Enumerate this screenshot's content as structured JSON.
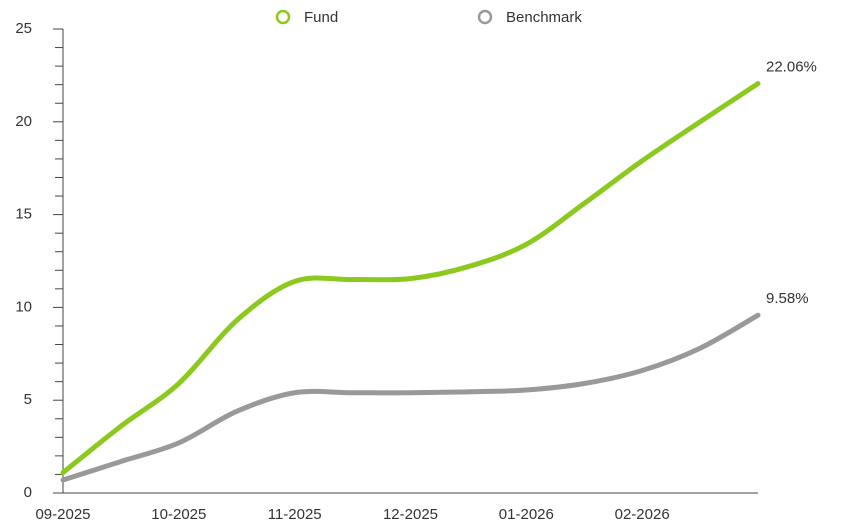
{
  "chart_data": {
    "type": "line",
    "categories": [
      "09-2025",
      null,
      "10-2025",
      null,
      "11-2025",
      null,
      "12-2025",
      null,
      "01-2026",
      null,
      "02-2026",
      null,
      null
    ],
    "series": [
      {
        "name": "Fund",
        "color": "#8cc91e",
        "values": [
          1.1,
          3.6,
          5.9,
          9.3,
          11.4,
          11.5,
          11.55,
          12.2,
          13.4,
          15.6,
          17.9,
          20.0,
          22.06
        ],
        "value_labels": [
          null,
          null,
          null,
          null,
          null,
          null,
          null,
          null,
          null,
          null,
          null,
          null,
          "22.06%"
        ]
      },
      {
        "name": "Benchmark",
        "color": "#999999",
        "values": [
          0.7,
          1.7,
          2.7,
          4.4,
          5.4,
          5.4,
          5.4,
          5.45,
          5.55,
          5.9,
          6.6,
          7.8,
          9.58
        ],
        "value_labels": [
          null,
          null,
          null,
          null,
          null,
          null,
          null,
          null,
          null,
          null,
          null,
          null,
          "9.58%"
        ]
      }
    ],
    "ylim": [
      0,
      25
    ],
    "yticks": [
      0,
      5,
      10,
      15,
      20,
      25
    ]
  }
}
